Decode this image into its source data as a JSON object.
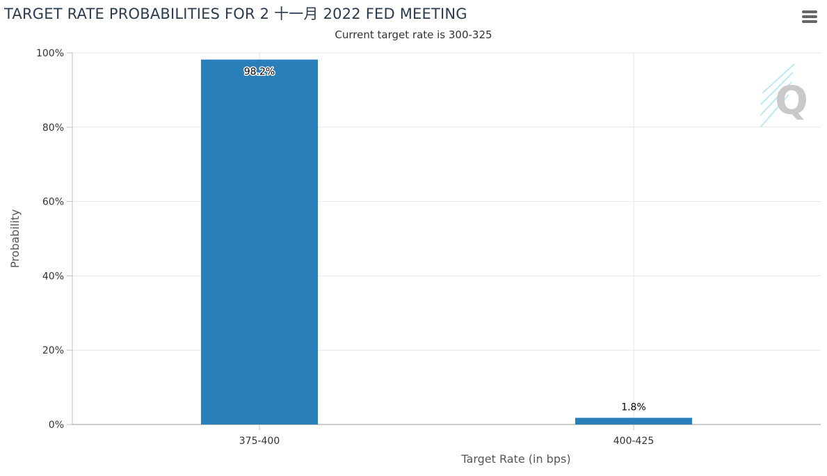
{
  "chart_data": {
    "type": "bar",
    "title": "TARGET RATE PROBABILITIES FOR 2 十一月 2022 FED MEETING",
    "subtitle": "Current target rate is 300-325",
    "xlabel": "Target Rate (in bps)",
    "ylabel": "Probability",
    "categories": [
      "375-400",
      "400-425"
    ],
    "values": [
      98.2,
      1.8
    ],
    "data_labels": [
      "98.2%",
      "1.8%"
    ],
    "ylim": [
      0,
      100
    ],
    "yticks": [
      "0%",
      "20%",
      "40%",
      "60%",
      "80%",
      "100%"
    ],
    "grid": true,
    "bar_color": "#2b7fb8"
  },
  "toolbar": {
    "menu_icon": "hamburger-menu-icon"
  },
  "watermark": {
    "icon": "q-logo-watermark-icon"
  }
}
